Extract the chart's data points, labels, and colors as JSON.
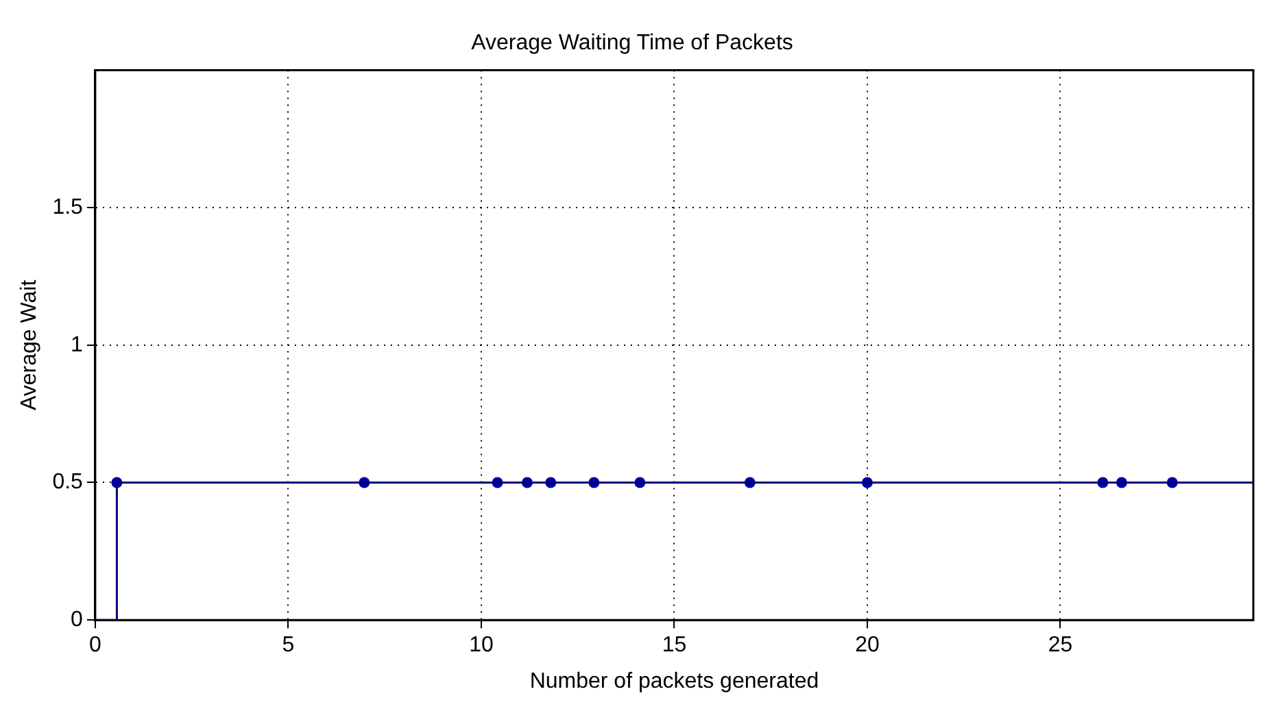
{
  "chart_data": {
    "type": "step",
    "title": "Average Waiting Time of Packets",
    "xlabel": "Number of packets generated",
    "ylabel": "Average Wait",
    "xlim": [
      0,
      30
    ],
    "xticks": [
      0,
      5,
      10,
      15,
      20,
      25
    ],
    "ylim": [
      0,
      2
    ],
    "yticks": [
      0,
      0.5,
      1,
      1.5
    ],
    "grid": true,
    "legend": false,
    "series": [
      {
        "type": "step",
        "color": "#000080",
        "marker": "none",
        "x": [
          0,
          0.56,
          30
        ],
        "values": [
          0,
          0.5,
          0.5
        ]
      },
      {
        "type": "scatter",
        "color": "#0000a0",
        "marker": "circle",
        "x": [
          0.56,
          6.97,
          10.42,
          11.19,
          11.8,
          12.92,
          14.11,
          16.96,
          20,
          26.1,
          26.59,
          27.9
        ],
        "values": [
          0.5,
          0.5,
          0.5,
          0.5,
          0.5,
          0.5,
          0.5,
          0.5,
          0.5,
          0.5,
          0.5,
          0.5
        ]
      }
    ]
  }
}
